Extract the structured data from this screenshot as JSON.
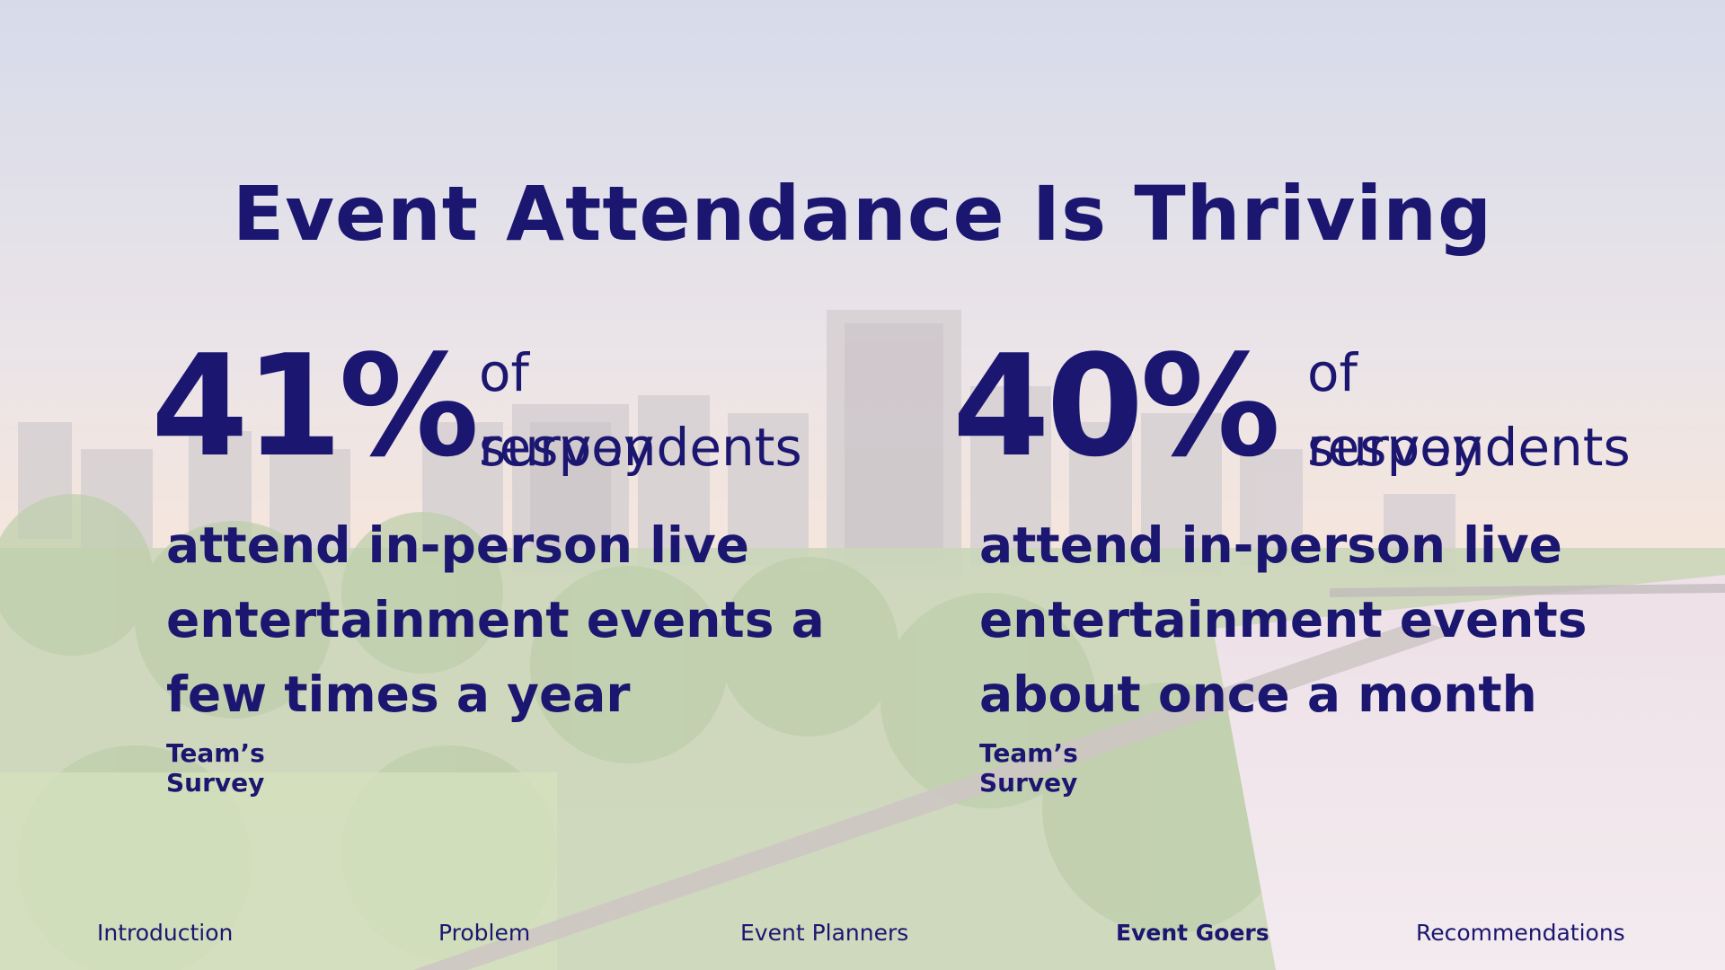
{
  "slide": {
    "title": "Event Attendance Is Thriving",
    "colors": {
      "text": "#1b1670"
    }
  },
  "stats": [
    {
      "percent": "41%",
      "of_line1": "of survey",
      "of_line2": "respondents",
      "desc_line1": "attend in-person live",
      "desc_line2": "entertainment events a",
      "desc_line3": "few times a year",
      "source": "Team’s Survey"
    },
    {
      "percent": "40%",
      "of_line1": "of survey",
      "of_line2": "respondents",
      "desc_line1": "attend in-person live",
      "desc_line2": "entertainment events",
      "desc_line3": "about once a month",
      "source": "Team’s Survey"
    }
  ],
  "nav": {
    "items": [
      "Introduction",
      "Problem",
      "Event Planners",
      "Event Goers",
      "Recommendations"
    ],
    "active": "Event Goers"
  }
}
